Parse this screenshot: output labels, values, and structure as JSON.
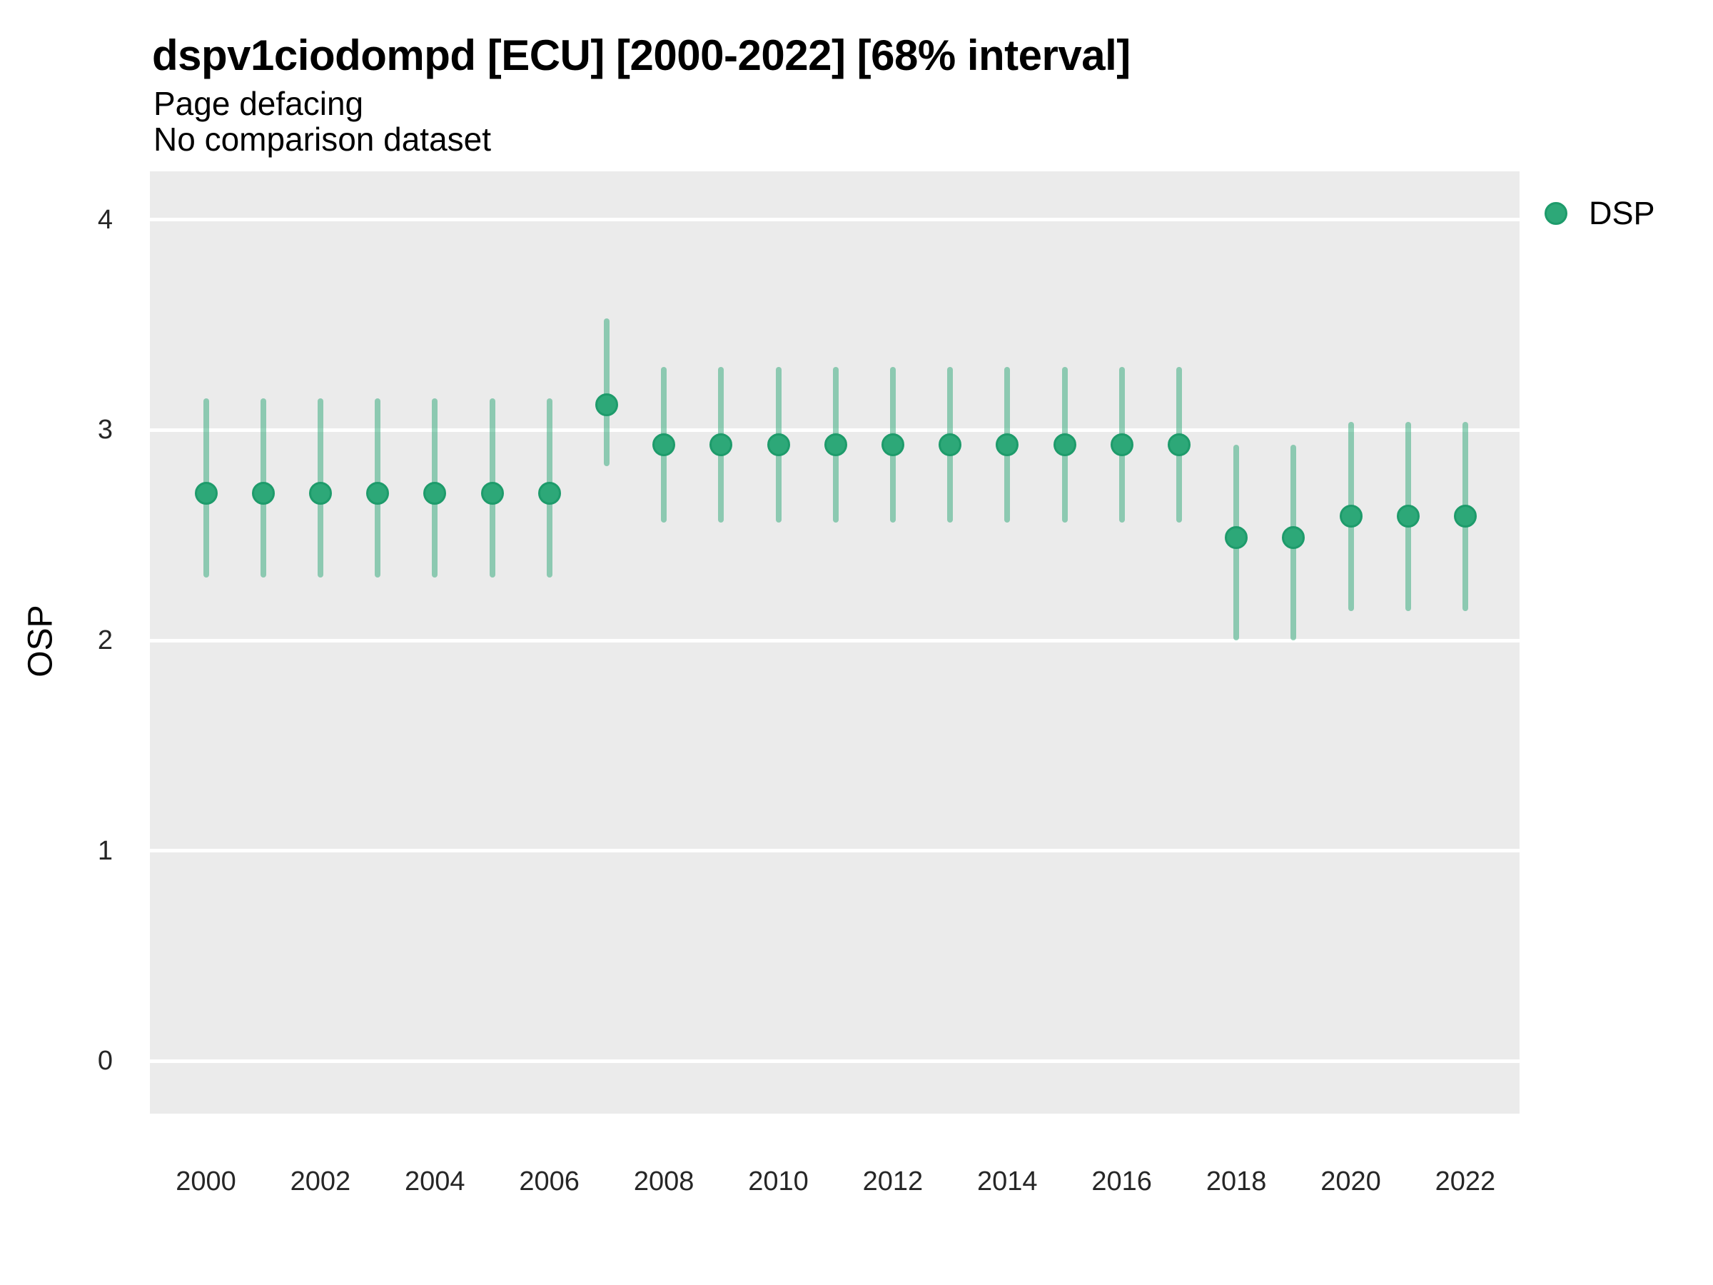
{
  "header": {
    "title": "dspv1ciodompd [ECU] [2000-2022] [68% interval]",
    "subtitle_line1": "Page defacing",
    "subtitle_line2": "No comparison dataset"
  },
  "legend": {
    "label": "DSP",
    "position": "right-top"
  },
  "axes": {
    "y_title": "OSP",
    "y_ticks": [
      0,
      1,
      2,
      3,
      4
    ],
    "x_ticks": [
      2000,
      2002,
      2004,
      2006,
      2008,
      2010,
      2012,
      2014,
      2016,
      2018,
      2020,
      2022
    ]
  },
  "colors": {
    "point_fill": "#2da878",
    "point_edge": "#1e9b6b",
    "interval_stroke": "rgba(45,168,120,0.5)",
    "panel_bg": "#ebebeb",
    "gridline": "#ffffff",
    "tick_text": "#262626"
  },
  "chart_data": {
    "type": "scatter",
    "subtype": "pointrange",
    "title": "dspv1ciodompd [ECU] [2000-2022] [68% interval]",
    "subtitle": [
      "Page defacing",
      "No comparison dataset"
    ],
    "xlabel": "",
    "ylabel": "OSP",
    "ylim": [
      -0.25,
      4.23
    ],
    "interval_level": "68%",
    "grid": "horizontal-major-only",
    "legend_position": "right",
    "series": [
      {
        "name": "DSP",
        "color": "#2da878",
        "x": [
          2000,
          2001,
          2002,
          2003,
          2004,
          2005,
          2006,
          2007,
          2008,
          2009,
          2010,
          2011,
          2012,
          2013,
          2014,
          2015,
          2016,
          2017,
          2018,
          2019,
          2020,
          2021,
          2022
        ],
        "y": [
          2.7,
          2.7,
          2.7,
          2.7,
          2.7,
          2.7,
          2.7,
          3.12,
          2.93,
          2.93,
          2.93,
          2.93,
          2.93,
          2.93,
          2.93,
          2.93,
          2.93,
          2.93,
          2.49,
          2.49,
          2.59,
          2.59,
          2.59
        ],
        "y_lo": [
          2.3,
          2.3,
          2.3,
          2.3,
          2.3,
          2.3,
          2.3,
          2.83,
          2.56,
          2.56,
          2.56,
          2.56,
          2.56,
          2.56,
          2.56,
          2.56,
          2.56,
          2.56,
          2.0,
          2.0,
          2.14,
          2.14,
          2.14
        ],
        "y_hi": [
          3.15,
          3.15,
          3.15,
          3.15,
          3.15,
          3.15,
          3.15,
          3.53,
          3.3,
          3.3,
          3.3,
          3.3,
          3.3,
          3.3,
          3.3,
          3.3,
          3.3,
          3.3,
          2.93,
          2.93,
          3.04,
          3.04,
          3.04
        ]
      }
    ]
  }
}
